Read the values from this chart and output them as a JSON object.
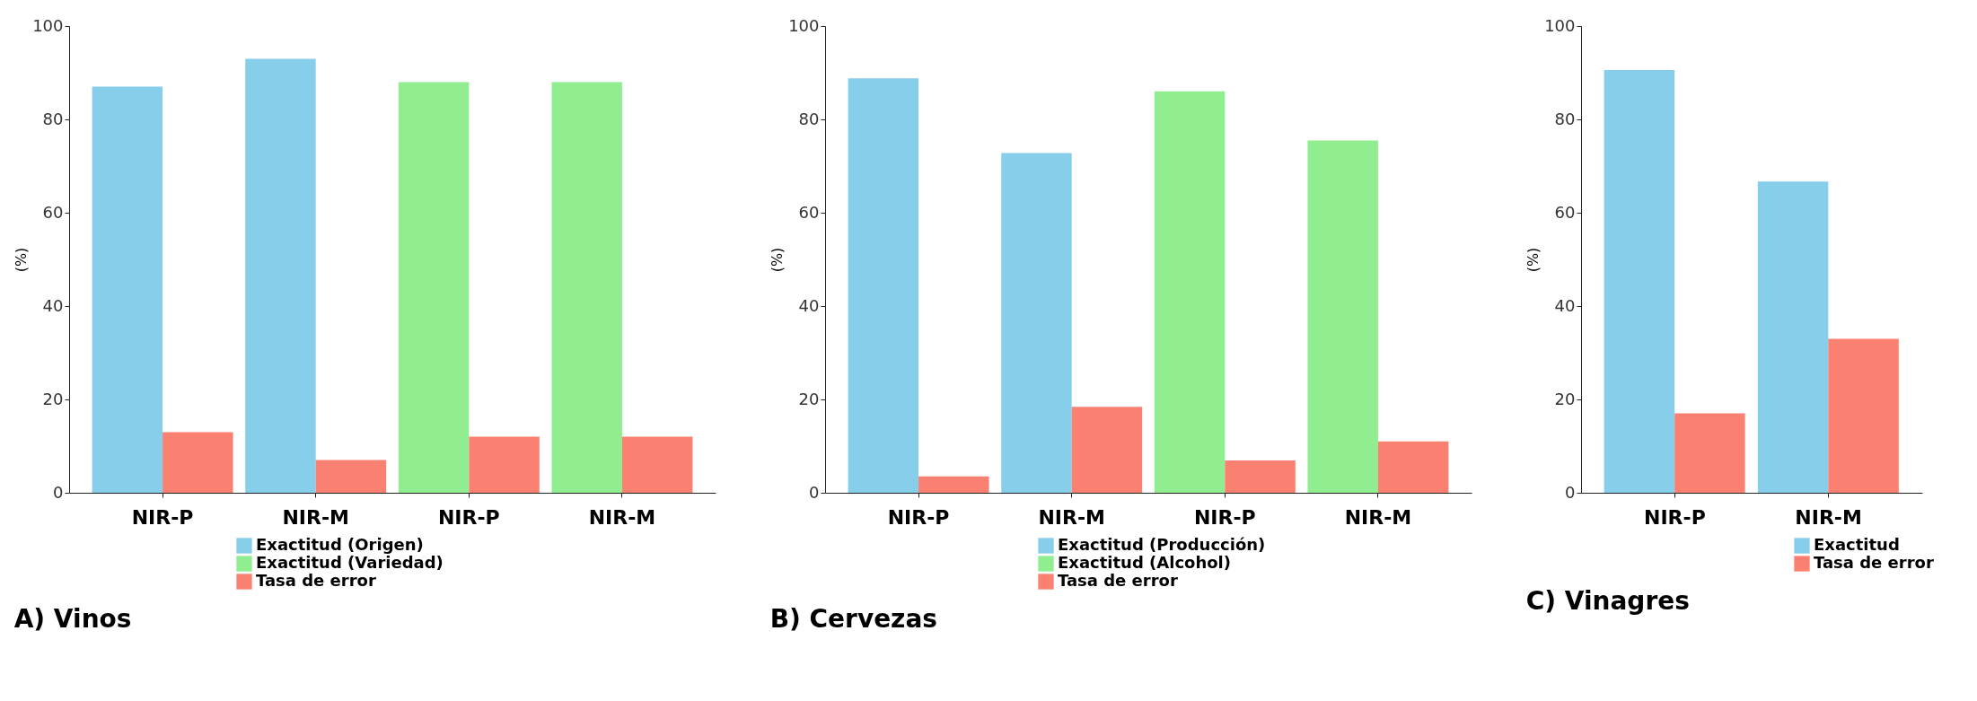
{
  "chart_data": [
    {
      "type": "bar",
      "title": "A) Vinos",
      "ylabel": "(%)",
      "categories": [
        "NIR-P",
        "NIR-M",
        "NIR-P",
        "NIR-M"
      ],
      "ylim": [
        0,
        100
      ],
      "yticks": [
        0,
        20,
        40,
        60,
        80,
        100
      ],
      "legend": "bottom",
      "series": [
        {
          "name": "Exactitud (Origen)",
          "color": "#87ceeb",
          "values": [
            87,
            93,
            null,
            null
          ]
        },
        {
          "name": "Exactitud (Variedad)",
          "color": "#90ee90",
          "values": [
            null,
            null,
            88,
            88
          ]
        },
        {
          "name": "Tasa de error",
          "color": "#fa8072",
          "values": [
            13,
            7,
            12,
            12
          ]
        }
      ]
    },
    {
      "type": "bar",
      "title": "B) Cervezas",
      "ylabel": "(%)",
      "categories": [
        "NIR-P",
        "NIR-M",
        "NIR-P",
        "NIR-M"
      ],
      "ylim": [
        0,
        100
      ],
      "yticks": [
        0,
        20,
        40,
        60,
        80,
        100
      ],
      "legend": "bottom",
      "series": [
        {
          "name": "Exactitud (Producción)",
          "color": "#87ceeb",
          "values": [
            88.8,
            72.8,
            null,
            null
          ]
        },
        {
          "name": "Exactitud (Alcohol)",
          "color": "#90ee90",
          "values": [
            null,
            null,
            86,
            75.5
          ]
        },
        {
          "name": "Tasa de error",
          "color": "#fa8072",
          "values": [
            3.5,
            18.4,
            6.9,
            11
          ]
        }
      ]
    },
    {
      "type": "bar",
      "title": "C) Vinagres",
      "ylabel": "(%)",
      "categories": [
        "NIR-P",
        "NIR-M"
      ],
      "ylim": [
        0,
        100
      ],
      "yticks": [
        0,
        20,
        40,
        60,
        80,
        100
      ],
      "legend": "bottom",
      "series": [
        {
          "name": "Exactitud",
          "color": "#87ceeb",
          "values": [
            90.6,
            66.7
          ]
        },
        {
          "name": "Tasa de error",
          "color": "#fa8072",
          "values": [
            17,
            33
          ]
        }
      ]
    }
  ]
}
